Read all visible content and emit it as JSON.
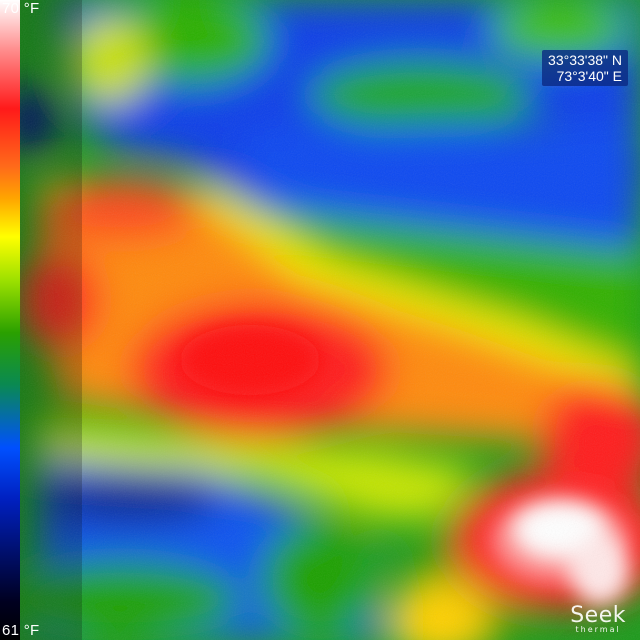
{
  "temperature_scale": {
    "max_label": "70 °F",
    "min_label": "61 °F"
  },
  "gps": {
    "latitude": "33°33'38\" N",
    "longitude": "73°3'40\" E"
  },
  "brand": {
    "name": "Seek",
    "sub": "thermal"
  },
  "palette": {
    "hot": "#ffffff",
    "warm": "#ff1a1a",
    "mid": "#ffff00",
    "cool": "#2aa000",
    "cold": "#0050ff",
    "coldest": "#000020"
  }
}
